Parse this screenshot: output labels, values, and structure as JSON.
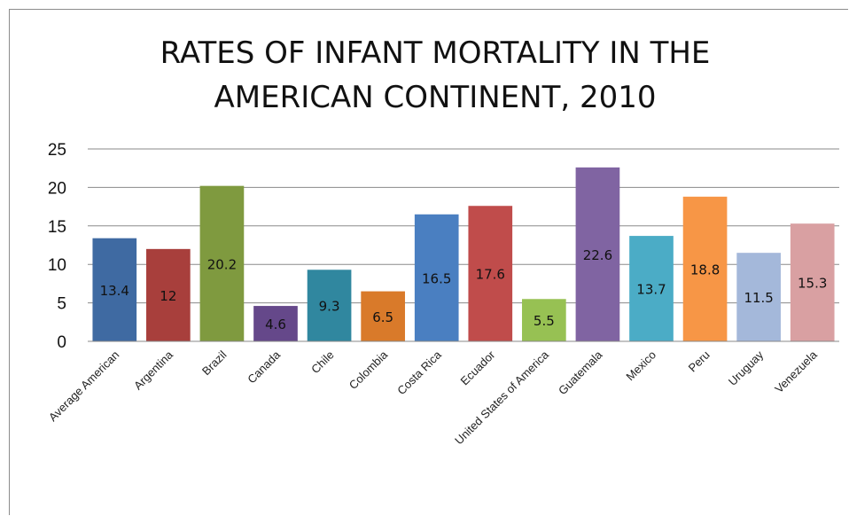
{
  "chart_data": {
    "type": "bar",
    "title_lines": [
      "RATES OF INFANT MORTALITY IN THE",
      "AMERICAN CONTINENT, 2010"
    ],
    "xlabel": "",
    "ylabel": "",
    "ylim": [
      0,
      25
    ],
    "yticks": [
      0,
      5,
      10,
      15,
      20,
      25
    ],
    "grid": true,
    "legend": "none",
    "categories": [
      "Average American",
      "Argentina",
      "Brazil",
      "Canada",
      "Chile",
      "Colombia",
      "Costa Rica",
      "Ecuador",
      "United States of America",
      "Guatemala",
      "Mexico",
      "Peru",
      "Uruguay",
      "Venezuela"
    ],
    "values": [
      13.4,
      12,
      20.2,
      4.6,
      9.3,
      6.5,
      16.5,
      17.6,
      5.5,
      22.6,
      13.7,
      18.8,
      11.5,
      15.3
    ],
    "colors": [
      "#3f6aa2",
      "#a83f3c",
      "#7f9a3f",
      "#65488a",
      "#30879f",
      "#d97a2a",
      "#4a7fc1",
      "#c04c4b",
      "#97c153",
      "#8064a2",
      "#4bacc6",
      "#f79646",
      "#a4b8da",
      "#d9a0a2"
    ]
  }
}
